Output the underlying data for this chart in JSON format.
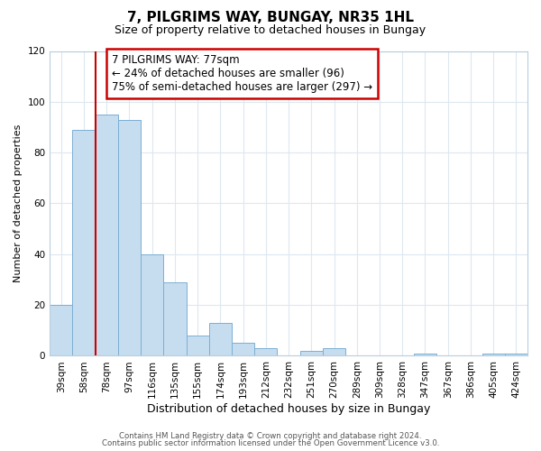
{
  "title": "7, PILGRIMS WAY, BUNGAY, NR35 1HL",
  "subtitle": "Size of property relative to detached houses in Bungay",
  "xlabel": "Distribution of detached houses by size in Bungay",
  "ylabel": "Number of detached properties",
  "categories": [
    "39sqm",
    "58sqm",
    "78sqm",
    "97sqm",
    "116sqm",
    "135sqm",
    "155sqm",
    "174sqm",
    "193sqm",
    "212sqm",
    "232sqm",
    "251sqm",
    "270sqm",
    "289sqm",
    "309sqm",
    "328sqm",
    "347sqm",
    "367sqm",
    "386sqm",
    "405sqm",
    "424sqm"
  ],
  "values": [
    20,
    89,
    95,
    93,
    40,
    29,
    8,
    13,
    5,
    3,
    0,
    2,
    3,
    0,
    0,
    0,
    1,
    0,
    0,
    1,
    1
  ],
  "bar_color": "#c6ddf0",
  "bar_edge_color": "#7bafd4",
  "highlight_bar_index": 2,
  "highlight_line_color": "#cc0000",
  "ylim": [
    0,
    120
  ],
  "yticks": [
    0,
    20,
    40,
    60,
    80,
    100,
    120
  ],
  "annotation_text": "7 PILGRIMS WAY: 77sqm\n← 24% of detached houses are smaller (96)\n75% of semi-detached houses are larger (297) →",
  "annotation_box_edge_color": "#cc0000",
  "footer_line1": "Contains HM Land Registry data © Crown copyright and database right 2024.",
  "footer_line2": "Contains public sector information licensed under the Open Government Licence v3.0.",
  "background_color": "#ffffff",
  "grid_color": "#dce8f0",
  "title_fontsize": 11,
  "subtitle_fontsize": 9,
  "xlabel_fontsize": 9,
  "ylabel_fontsize": 8,
  "tick_fontsize": 7.5,
  "annotation_fontsize": 8.5
}
